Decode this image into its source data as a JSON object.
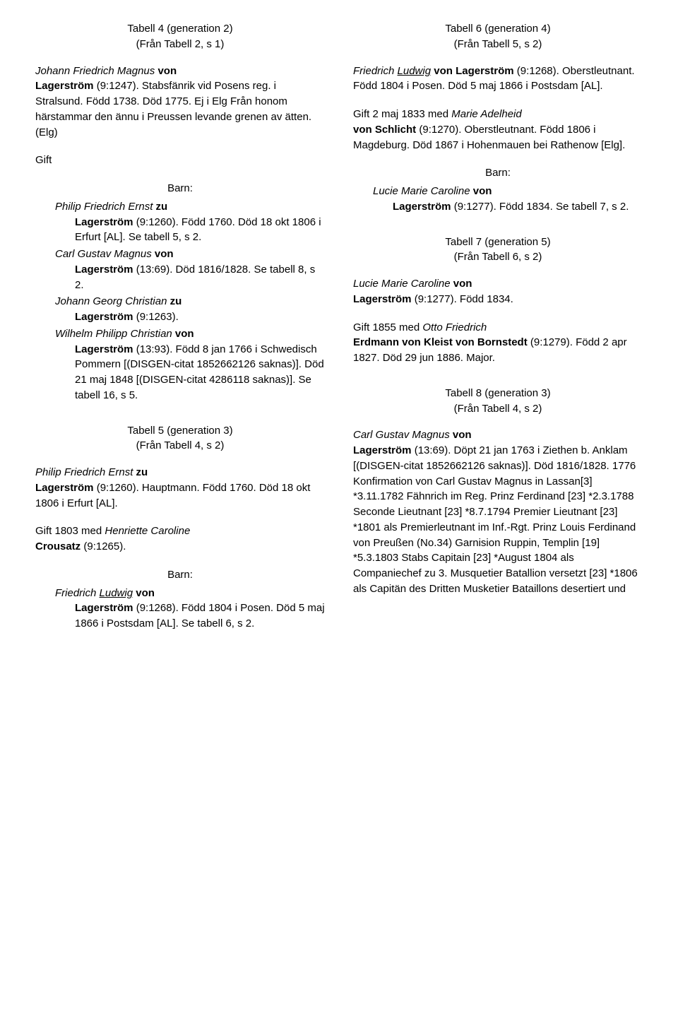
{
  "fontsize_body": 15,
  "color_text": "#000000",
  "color_bg": "#ffffff",
  "left": {
    "t4": {
      "title1": "Tabell 4 (generation 2)",
      "title2": "(Från Tabell 2, s 1)",
      "person_pre": "Johann Friedrich Magnus ",
      "person_von": "von",
      "person_name": "Lagerström",
      "person_post": " (9:1247). Stabsfänrik vid Posens reg. i Stralsund. Född 1738. Död 1775. Ej i Elg Från honom härstammar den ännu i Preussen levande grenen av ätten. (Elg)",
      "gift": "Gift",
      "barn": "Barn:",
      "children": [
        {
          "it": "Philip Friedrich Ernst ",
          "zu": "zu",
          "br": true,
          "bold": "Lagerström",
          "rest": " (9:1260). Född 1760. Död 18 okt 1806 i Erfurt [AL]. Se tabell 5, s 2."
        },
        {
          "it": "Carl Gustav Magnus ",
          "zu": "von",
          "br": true,
          "bold": "Lagerström",
          "rest": " (13:69). Död 1816/1828. Se tabell 8, s 2."
        },
        {
          "it": "Johann Georg Christian ",
          "zu": "zu",
          "br": true,
          "bold": "Lagerström",
          "rest": " (9:1263)."
        },
        {
          "it": "Wilhelm Philipp Christian ",
          "zu": "von",
          "br": true,
          "bold": "Lagerström",
          "rest": " (13:93). Född 8 jan 1766 i Schwedisch Pommern [(DISGEN-citat 1852662126 saknas)]. Död 21 maj 1848 [(DISGEN-citat 4286118 saknas)]. Se tabell 16, s 5."
        }
      ]
    },
    "t5": {
      "title1": "Tabell 5 (generation 3)",
      "title2": "(Från Tabell 4, s 2)",
      "p1_it": "Philip Friedrich Ernst ",
      "p1_zu": "zu",
      "p1_bold": "Lagerström",
      "p1_rest": " (9:1260). Hauptmann. Född 1760. Död 18 okt 1806 i Erfurt [AL].",
      "p2_pre": "Gift 1803 med ",
      "p2_it": "Henriette Caroline",
      "p2_bold": "Crousatz",
      "p2_rest": " (9:1265).",
      "barn": "Barn:",
      "child_it": "Friedrich ",
      "child_ul": "Ludwig",
      "child_von": " von",
      "child_bold": "Lagerström",
      "child_rest": " (9:1268). Född 1804 i Posen. Död 5 maj 1866 i Postsdam [AL]. Se tabell 6, s 2."
    }
  },
  "right": {
    "t6": {
      "title1": "Tabell 6 (generation 4)",
      "title2": "(Från Tabell 5, s 2)",
      "p1_it1": "Friedrich ",
      "p1_ul": "Ludwig",
      "p1_sp": " ",
      "p1_bold": "von Lagerström",
      "p1_rest": " (9:1268). Oberstleutnant. Född 1804 i Posen. Död 5 maj 1866 i Postsdam [AL].",
      "p2_pre": "Gift 2 maj 1833 med ",
      "p2_it": "Marie Adelheid",
      "p2_bold": "von Schlicht",
      "p2_rest": " (9:1270). Oberstleutnant. Född 1806 i Magdeburg. Död 1867 i Hohenmauen bei Rathenow [Elg].",
      "barn": "Barn:",
      "child_it": "Lucie Marie Caroline ",
      "child_von": "von",
      "child_bold": "Lagerström",
      "child_rest": " (9:1277). Född 1834. Se tabell 7, s 2."
    },
    "t7": {
      "title1": "Tabell 7 (generation 5)",
      "title2": "(Från Tabell 6, s 2)",
      "p1_it": "Lucie Marie Caroline ",
      "p1_von": "von",
      "p1_bold": "Lagerström",
      "p1_rest": " (9:1277). Född 1834.",
      "p2_pre": "Gift 1855 med ",
      "p2_it": "Otto Friedrich",
      "p2_bold": "Erdmann von Kleist von Bornstedt",
      "p2_rest": " (9:1279). Född 2 apr 1827. Död 29 jun 1886. Major."
    },
    "t8": {
      "title1": "Tabell 8 (generation 3)",
      "title2": "(Från Tabell 4, s 2)",
      "p1_it": "Carl Gustav Magnus ",
      "p1_von": "von",
      "p1_bold": "Lagerström",
      "p1_rest": " (13:69). Döpt 21 jan 1763 i Ziethen b. Anklam [(DISGEN-citat 1852662126 saknas)]. Död 1816/1828. 1776 Konfirmation von Carl Gustav Magnus in Lassan[3] *3.11.1782 Fähnrich im Reg. Prinz Ferdinand [23] *2.3.1788 Seconde Lieutnant [23] *8.7.1794 Premier Lieutnant [23] *1801 als Premierleutnant im Inf.-Rgt. Prinz Louis Ferdinand von Preußen (No.34) Garnision Ruppin, Templin [19] *5.3.1803 Stabs Capitain [23] *August 1804 als Companiechef zu 3. Musquetier Batallion versetzt [23] *1806 als Capitän des Dritten Musketier Bataillons desertiert und"
    }
  }
}
